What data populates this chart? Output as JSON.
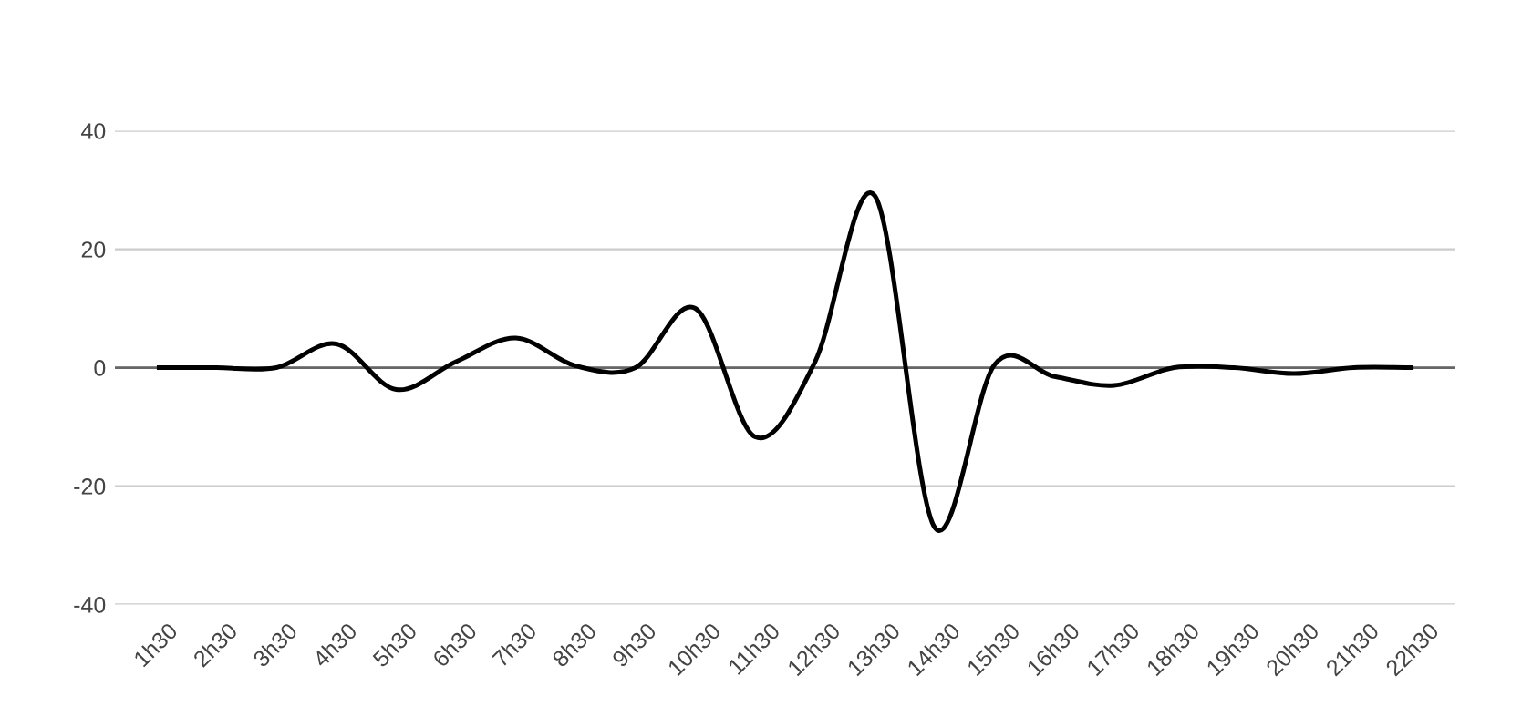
{
  "chart_data": {
    "type": "line",
    "categories": [
      "1h30",
      "2h30",
      "3h30",
      "4h30",
      "5h30",
      "6h30",
      "7h30",
      "8h30",
      "9h30",
      "10h30",
      "11h30",
      "12h30",
      "13h30",
      "14h30",
      "15h30",
      "16h30",
      "17h30",
      "18h30",
      "19h30",
      "20h30",
      "21h30",
      "22h30"
    ],
    "series": [
      {
        "color": "#000000",
        "values": [
          0,
          0,
          0,
          4,
          -3.7,
          1,
          5,
          0.3,
          0,
          10,
          -11.7,
          1,
          29,
          -27,
          0.5,
          -1.5,
          -3,
          0,
          0,
          -1,
          0,
          0
        ]
      }
    ],
    "ylim": [
      -40,
      40
    ],
    "yticks": [
      -40,
      -20,
      0,
      20,
      40
    ],
    "grid": "y",
    "marker": "none",
    "line_style": "solid",
    "ref_lines": [
      {
        "axis": "y",
        "value": 0,
        "color": "#666666"
      }
    ]
  }
}
